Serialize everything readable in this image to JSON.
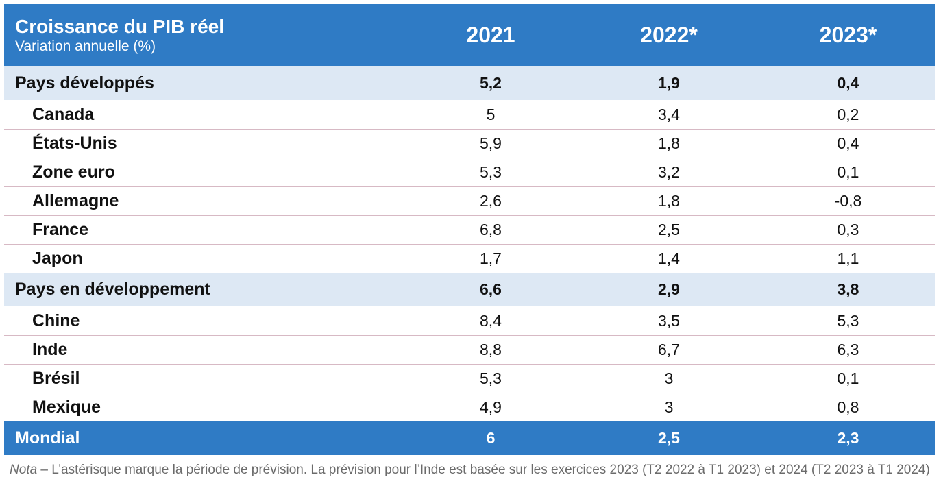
{
  "chart_data": {
    "type": "table",
    "title": "Croissance du PIB réel",
    "subtitle": "Variation annuelle (%)",
    "columns": [
      "2021",
      "2022*",
      "2023*"
    ],
    "groups": [
      {
        "name": "Pays développés",
        "values": [
          "5,2",
          "1,9",
          "0,4"
        ],
        "rows": [
          {
            "name": "Canada",
            "values": [
              "5",
              "3,4",
              "0,2"
            ]
          },
          {
            "name": "États-Unis",
            "values": [
              "5,9",
              "1,8",
              "0,4"
            ]
          },
          {
            "name": "Zone euro",
            "values": [
              "5,3",
              "3,2",
              "0,1"
            ]
          },
          {
            "name": "Allemagne",
            "values": [
              "2,6",
              "1,8",
              "-0,8"
            ]
          },
          {
            "name": "France",
            "values": [
              "6,8",
              "2,5",
              "0,3"
            ]
          },
          {
            "name": "Japon",
            "values": [
              "1,7",
              "1,4",
              "1,1"
            ]
          }
        ]
      },
      {
        "name": "Pays en développement",
        "values": [
          "6,6",
          "2,9",
          "3,8"
        ],
        "rows": [
          {
            "name": "Chine",
            "values": [
              "8,4",
              "3,5",
              "5,3"
            ]
          },
          {
            "name": "Inde",
            "values": [
              "8,8",
              "6,7",
              "6,3"
            ]
          },
          {
            "name": "Brésil",
            "values": [
              "5,3",
              "3",
              "0,1"
            ]
          },
          {
            "name": "Mexique",
            "values": [
              "4,9",
              "3",
              "0,8"
            ]
          }
        ]
      }
    ],
    "total": {
      "name": "Mondial",
      "values": [
        "6",
        "2,5",
        "2,3"
      ]
    }
  },
  "note": {
    "lead": "Nota",
    "text": " – L’astérisque marque la période de prévision. La prévision pour l’Inde est basée sur les exercices 2023 (T2 2022 à T1 2023) et 2024 (T2 2023 à T1 2024)"
  },
  "colors": {
    "header_bg": "#2f7bc5",
    "group_bg": "#dde8f4",
    "row_border": "#d7b9c4",
    "note_text": "#6b6b6b"
  }
}
